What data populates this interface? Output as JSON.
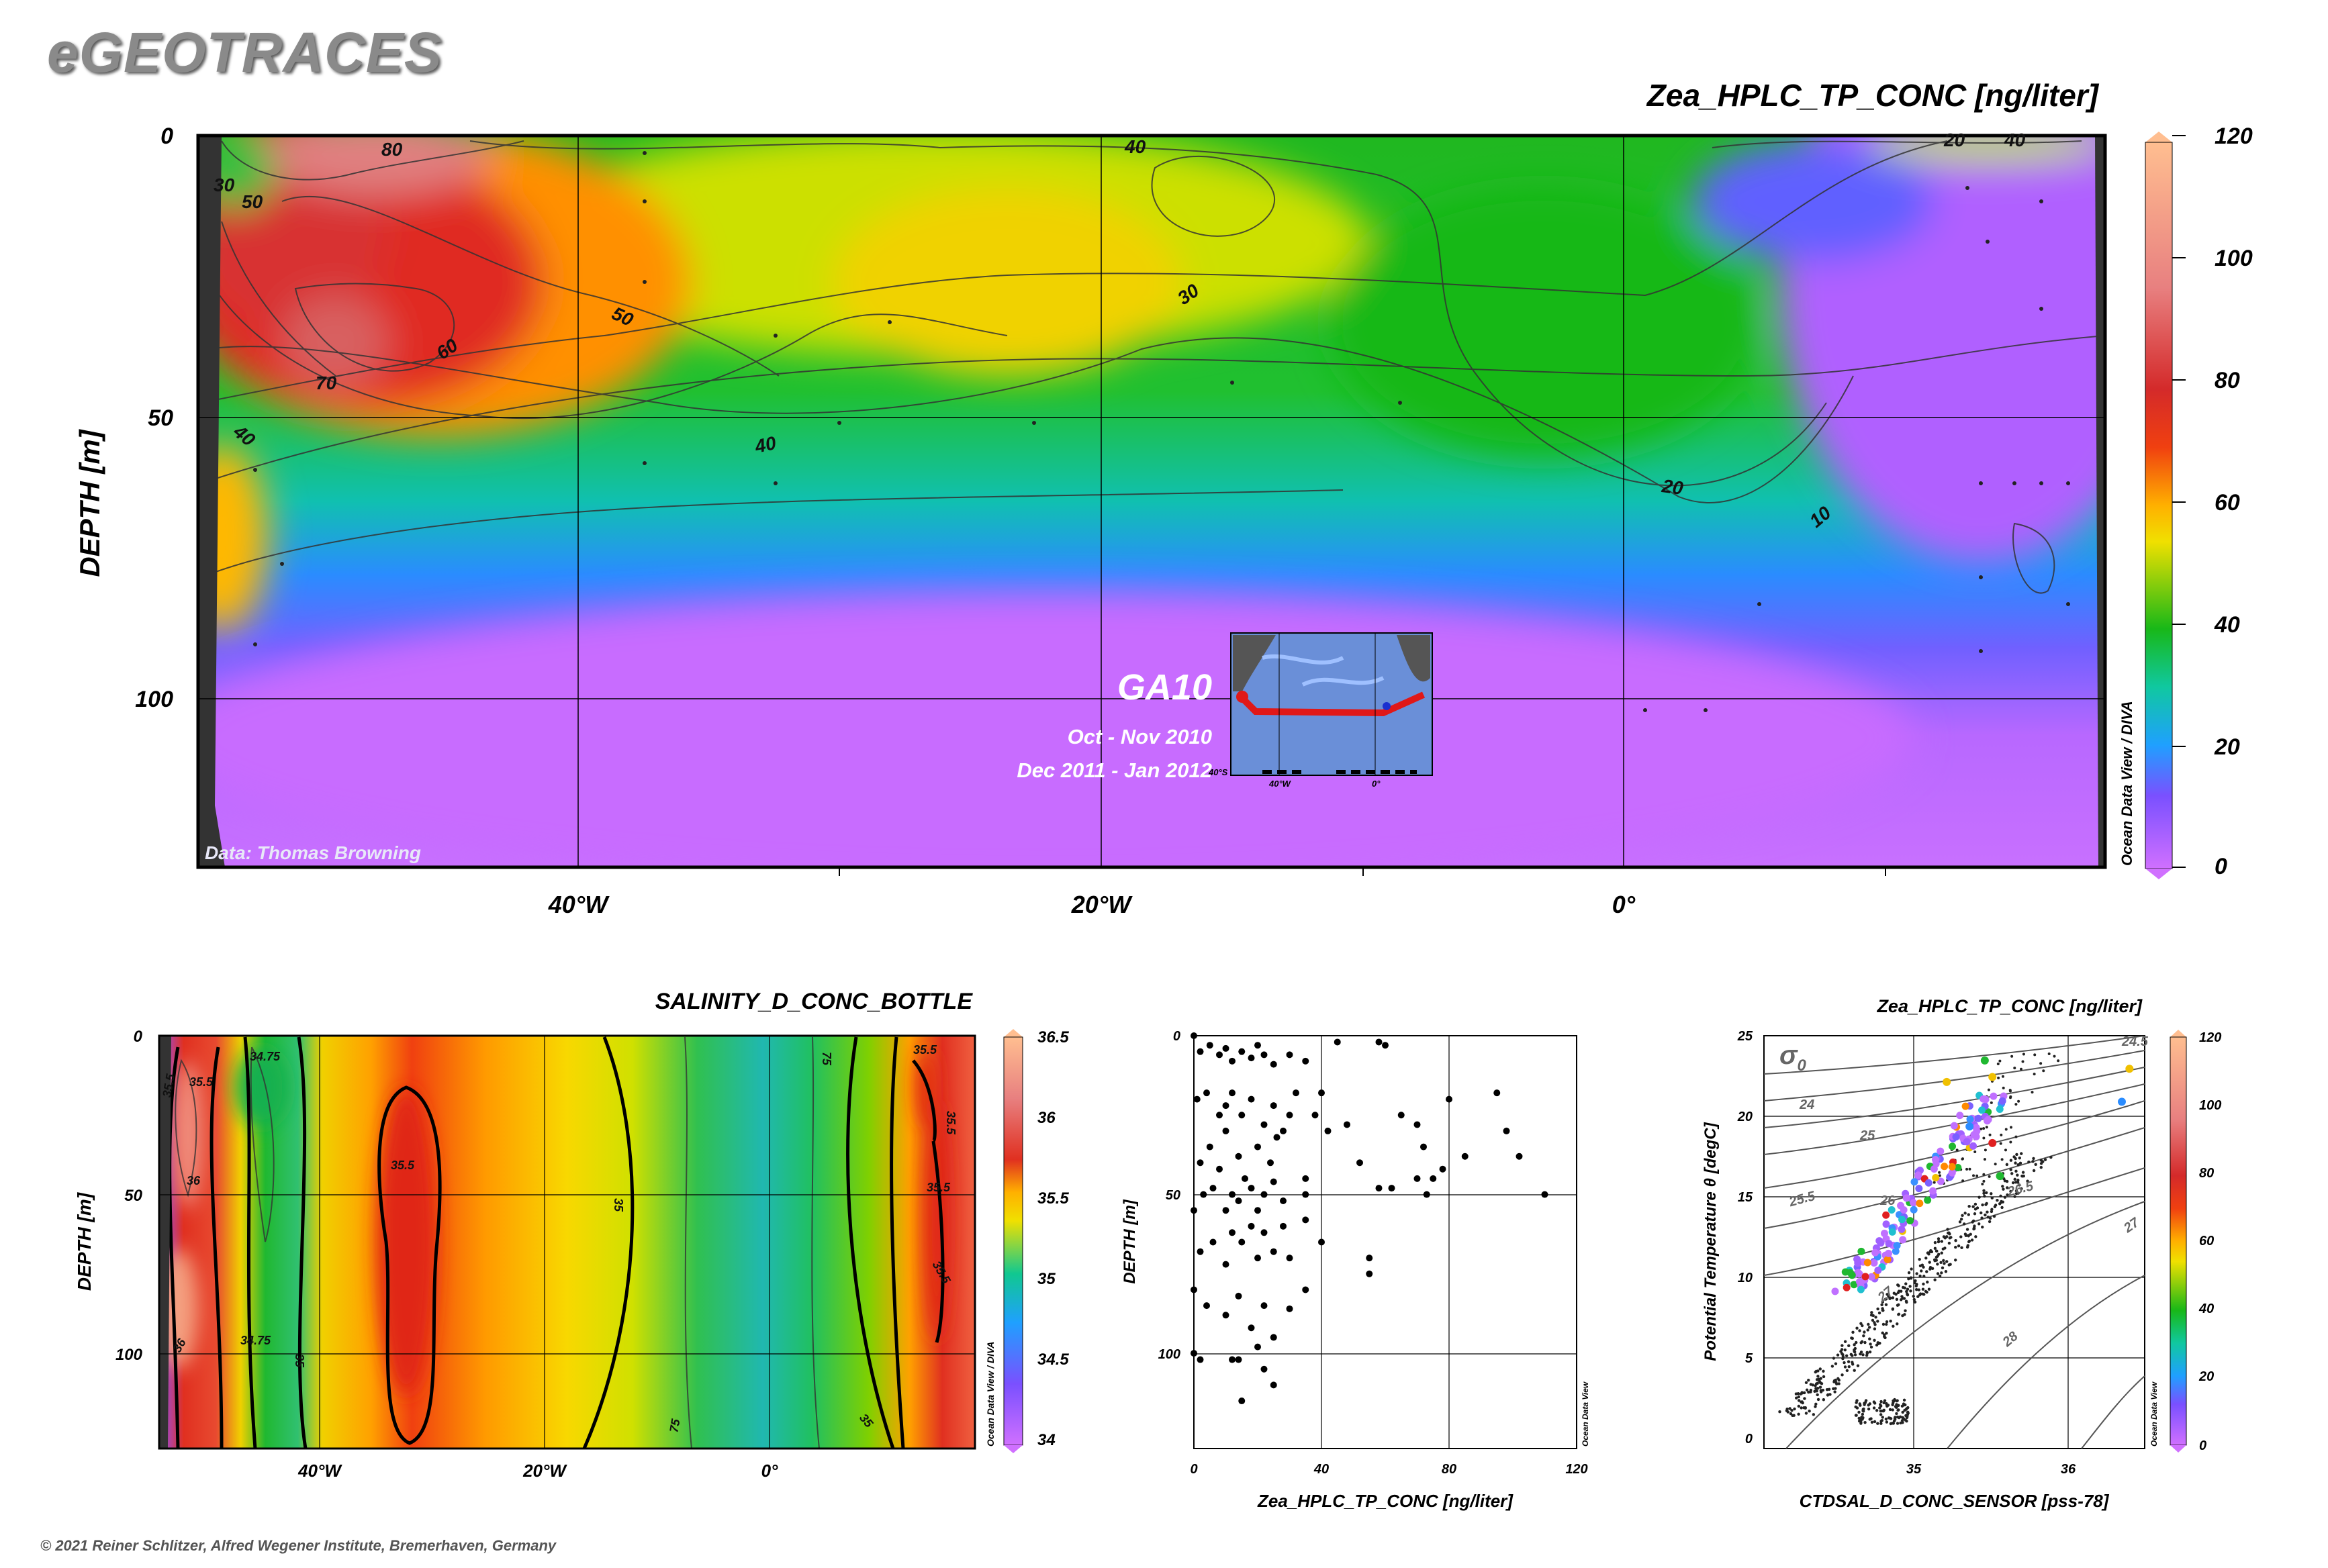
{
  "brand": "eGEOTRACES",
  "footer": "© 2021 Reiner Schlitzer, Alfred Wegener Institute, Bremerhaven, Germany",
  "section_plot": {
    "title": "Zea_HPLC_TP_CONC [ng/liter]",
    "ylabel": "DEPTH [m]",
    "xticks": [
      "40°W",
      "20°W",
      "0°"
    ],
    "yticks": [
      "0",
      "50",
      "100"
    ],
    "colorbar_ticks": [
      "0",
      "20",
      "40",
      "60",
      "80",
      "100",
      "120"
    ],
    "contour_labels": [
      "20",
      "40",
      "30",
      "50",
      "80",
      "70",
      "60",
      "50",
      "40",
      "30",
      "40",
      "20",
      "10",
      "10",
      "20",
      "40",
      "70"
    ],
    "credit": "Data: Thomas Browning",
    "odv_label": "Ocean Data View / DIVA",
    "cruise": "GA10",
    "dates_1": "Oct - Nov 2010",
    "dates_2": "Dec 2011 - Jan 2012",
    "inset_ticks": [
      "40°S",
      "40°W",
      "0°"
    ]
  },
  "salinity_plot": {
    "title": "SALINITY_D_CONC_BOTTLE",
    "ylabel": "DEPTH [m]",
    "xticks": [
      "40°W",
      "20°W",
      "0°"
    ],
    "yticks": [
      "0",
      "50",
      "100"
    ],
    "colorbar_ticks": [
      "34",
      "34.5",
      "35",
      "35.5",
      "36",
      "36.5"
    ],
    "contour_labels": [
      "35.5",
      "35.5",
      "36",
      "36",
      "34.75",
      "35",
      "35.5",
      "35",
      "75",
      "75",
      "35",
      "35.5",
      "35.5",
      "35.5",
      "35.5",
      "34.75"
    ],
    "odv_label": "Ocean Data View / DIVA"
  },
  "scatter_plot": {
    "xlabel": "Zea_HPLC_TP_CONC [ng/liter]",
    "ylabel": "DEPTH [m]",
    "xticks": [
      "0",
      "40",
      "80",
      "120"
    ],
    "yticks": [
      "0",
      "50",
      "100"
    ],
    "odv_label": "Ocean Data View"
  },
  "ts_plot": {
    "title": "Zea_HPLC_TP_CONC [ng/liter]",
    "xlabel": "CTDSAL_D_CONC_SENSOR [pss-78]",
    "ylabel": "Potential Temperature θ [degC]",
    "xticks": [
      "35",
      "36"
    ],
    "yticks": [
      "0",
      "5",
      "10",
      "15",
      "20",
      "25"
    ],
    "sigma_symbol": "σ",
    "sigma_sub": "0",
    "isopycnal_labels": [
      "24",
      "24.5",
      "25",
      "25.5",
      "26",
      "26.5",
      "27",
      "27",
      "28"
    ],
    "colorbar_ticks": [
      "0",
      "20",
      "40",
      "60",
      "80",
      "100",
      "120"
    ],
    "odv_label": "Ocean Data View"
  },
  "chart_data": [
    {
      "type": "heatmap",
      "title": "Zea_HPLC_TP_CONC [ng/liter]",
      "ylabel": "DEPTH [m]",
      "x_range_lon": [
        -55,
        20
      ],
      "y_range_depth": [
        0,
        130
      ],
      "colorbar_range": [
        0,
        120
      ],
      "colors": {
        "low": "#c060ff",
        "mid": "#20c020",
        "high": "#ffb890"
      },
      "description_values": [
        {
          "lon": -50,
          "depth": 35,
          "value": 70
        },
        {
          "lon": -45,
          "depth": 10,
          "value": 80
        },
        {
          "lon": -35,
          "depth": 45,
          "value": 55
        },
        {
          "lon": -25,
          "depth": 30,
          "value": 35
        },
        {
          "lon": -10,
          "depth": 10,
          "value": 25
        },
        {
          "lon": 0,
          "depth": 40,
          "value": 20
        },
        {
          "lon": 10,
          "depth": 10,
          "value": 5
        },
        {
          "lon": -20,
          "depth": 100,
          "value": 0
        }
      ]
    },
    {
      "type": "heatmap",
      "title": "SALINITY_D_CONC_BOTTLE",
      "ylabel": "DEPTH [m]",
      "colorbar_range": [
        34,
        36.5
      ],
      "description_values": [
        {
          "lon": -50,
          "depth": 60,
          "value": 36
        },
        {
          "lon": -45,
          "depth": 30,
          "value": 34.8
        },
        {
          "lon": -32,
          "depth": 70,
          "value": 35.6
        },
        {
          "lon": -20,
          "depth": 50,
          "value": 35.1
        },
        {
          "lon": -5,
          "depth": 50,
          "value": 34.6
        },
        {
          "lon": 5,
          "depth": 50,
          "value": 34.8
        },
        {
          "lon": 13,
          "depth": 50,
          "value": 35.6
        }
      ]
    },
    {
      "type": "scatter",
      "xlabel": "Zea_HPLC_TP_CONC [ng/liter]",
      "ylabel": "DEPTH [m]",
      "xlim": [
        0,
        120
      ],
      "ylim": [
        130,
        0
      ],
      "points": [
        [
          0,
          0
        ],
        [
          2,
          5
        ],
        [
          5,
          3
        ],
        [
          8,
          6
        ],
        [
          10,
          4
        ],
        [
          12,
          8
        ],
        [
          15,
          5
        ],
        [
          18,
          7
        ],
        [
          20,
          3
        ],
        [
          22,
          6
        ],
        [
          25,
          9
        ],
        [
          30,
          6
        ],
        [
          35,
          8
        ],
        [
          45,
          2
        ],
        [
          58,
          2
        ],
        [
          60,
          3
        ],
        [
          1,
          20
        ],
        [
          4,
          18
        ],
        [
          8,
          25
        ],
        [
          10,
          22
        ],
        [
          12,
          18
        ],
        [
          15,
          25
        ],
        [
          18,
          20
        ],
        [
          22,
          28
        ],
        [
          25,
          22
        ],
        [
          28,
          30
        ],
        [
          32,
          18
        ],
        [
          38,
          25
        ],
        [
          40,
          18
        ],
        [
          30,
          25
        ],
        [
          2,
          40
        ],
        [
          5,
          35
        ],
        [
          8,
          42
        ],
        [
          10,
          30
        ],
        [
          14,
          38
        ],
        [
          16,
          45
        ],
        [
          20,
          35
        ],
        [
          24,
          40
        ],
        [
          26,
          32
        ],
        [
          35,
          45
        ],
        [
          42,
          30
        ],
        [
          48,
          28
        ],
        [
          52,
          40
        ],
        [
          0,
          55
        ],
        [
          3,
          50
        ],
        [
          6,
          48
        ],
        [
          10,
          55
        ],
        [
          12,
          50
        ],
        [
          14,
          52
        ],
        [
          18,
          48
        ],
        [
          20,
          55
        ],
        [
          22,
          50
        ],
        [
          25,
          46
        ],
        [
          28,
          52
        ],
        [
          35,
          50
        ],
        [
          58,
          48
        ],
        [
          62,
          48
        ],
        [
          70,
          45
        ],
        [
          73,
          50
        ],
        [
          78,
          42
        ],
        [
          65,
          25
        ],
        [
          70,
          28
        ],
        [
          72,
          35
        ],
        [
          75,
          45
        ],
        [
          80,
          20
        ],
        [
          85,
          38
        ],
        [
          95,
          18
        ],
        [
          98,
          30
        ],
        [
          102,
          38
        ],
        [
          110,
          50
        ],
        [
          2,
          68
        ],
        [
          6,
          65
        ],
        [
          10,
          72
        ],
        [
          12,
          62
        ],
        [
          15,
          65
        ],
        [
          18,
          60
        ],
        [
          20,
          70
        ],
        [
          22,
          62
        ],
        [
          25,
          68
        ],
        [
          28,
          60
        ],
        [
          30,
          70
        ],
        [
          35,
          58
        ],
        [
          40,
          65
        ],
        [
          55,
          70
        ],
        [
          55,
          75
        ],
        [
          0,
          80
        ],
        [
          4,
          85
        ],
        [
          10,
          88
        ],
        [
          14,
          82
        ],
        [
          18,
          92
        ],
        [
          22,
          85
        ],
        [
          25,
          95
        ],
        [
          30,
          86
        ],
        [
          35,
          80
        ],
        [
          0,
          100
        ],
        [
          2,
          102
        ],
        [
          12,
          102
        ],
        [
          14,
          102
        ],
        [
          20,
          98
        ],
        [
          22,
          105
        ],
        [
          15,
          115
        ],
        [
          25,
          110
        ]
      ]
    },
    {
      "type": "scatter",
      "xlabel": "CTDSAL_D_CONC_SENSOR [pss-78]",
      "ylabel": "Potential Temperature θ [degC]",
      "xlim": [
        34.0,
        36.5
      ],
      "ylim": [
        0,
        25
      ],
      "color_var": "Zea_HPLC_TP_CONC [ng/liter]",
      "color_range": [
        0,
        120
      ],
      "isopycnals": [
        24,
        24.5,
        25,
        25.5,
        26,
        26.5,
        27,
        28
      ]
    }
  ]
}
